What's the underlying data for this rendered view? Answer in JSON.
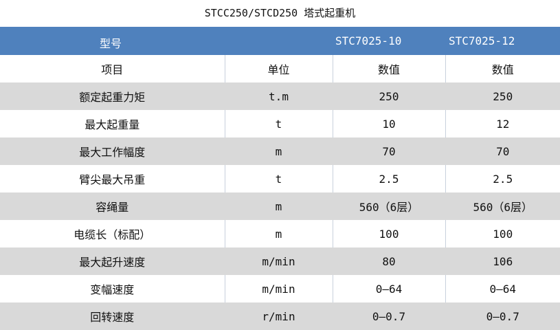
{
  "title": "STCC250/STCD250 塔式起重机",
  "header": {
    "model_label": "型号",
    "models": [
      "STC7025-10",
      "STC7025-12"
    ]
  },
  "columns": [
    "项目",
    "单位",
    "数值",
    "数值"
  ],
  "rows": [
    [
      "额定起重力矩",
      "t.m",
      "250",
      "250"
    ],
    [
      "最大起重量",
      "t",
      "10",
      "12"
    ],
    [
      "最大工作幅度",
      "m",
      "70",
      "70"
    ],
    [
      "臂尖最大吊重",
      "t",
      "2.5",
      "2.5"
    ],
    [
      "容绳量",
      "m",
      "560（6层）",
      "560（6层）"
    ],
    [
      "电缆长（标配）",
      "m",
      "100",
      "100"
    ],
    [
      "最大起升速度",
      "m/min",
      "80",
      "106"
    ],
    [
      "变幅速度",
      "m/min",
      "0—64",
      "0—64"
    ],
    [
      "回转速度",
      "r/min",
      "0—0.7",
      "0—0.7"
    ]
  ],
  "colors": {
    "header": "#4f81bd",
    "stripe": "#d9d9d9"
  }
}
